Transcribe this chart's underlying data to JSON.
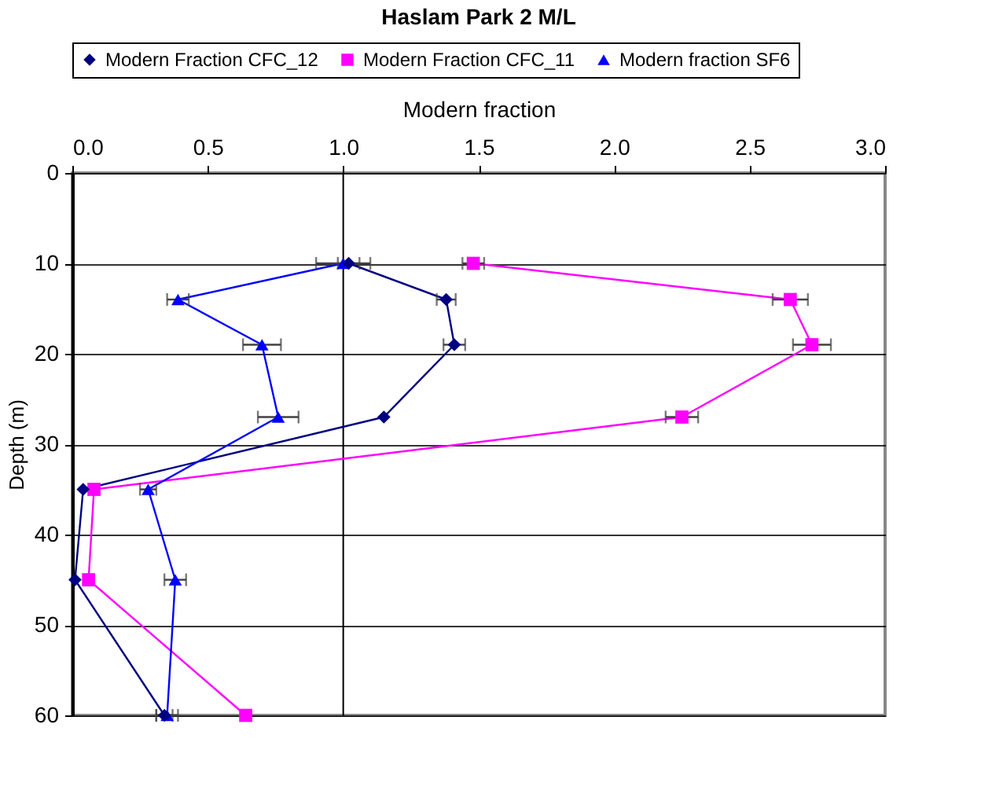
{
  "chart_data": {
    "type": "line",
    "title": "Haslam Park 2 M/L",
    "xlabel": "Modern fraction",
    "ylabel": "Depth (m)",
    "xlim": [
      0,
      3
    ],
    "xticks": [
      {
        "value": 0,
        "label": "0.0"
      },
      0.5,
      {
        "value": 1,
        "label": "1.0"
      },
      1.5,
      {
        "value": 2,
        "label": "2.0"
      },
      2.5,
      {
        "value": 3,
        "label": "3.0"
      }
    ],
    "ylim": [
      60,
      0
    ],
    "yticks": [
      0,
      10,
      20,
      30,
      40,
      50,
      60
    ],
    "grid": "y",
    "legend": "top",
    "ref_lines": [
      {
        "axis": "x",
        "value": 1,
        "color": "#000000"
      }
    ],
    "series": [
      {
        "name": "Modern Fraction CFC_12",
        "color": "#000080",
        "marker": "diamond",
        "x": [
          1.02,
          1.38,
          1.41,
          1.15,
          0.04,
          0.01,
          0.34
        ],
        "values": [
          10,
          14,
          19,
          27,
          35,
          45,
          60
        ],
        "xerrors": [
          0.04,
          0.035,
          0.04,
          null,
          null,
          null,
          0.03
        ]
      },
      {
        "name": "Modern Fraction CFC_11",
        "color": "#ff00ff",
        "marker": "square",
        "x": [
          1.48,
          2.65,
          2.73,
          2.25,
          0.08,
          0.06,
          0.64
        ],
        "values": [
          10,
          14,
          19,
          27,
          35,
          45,
          60
        ],
        "xerrors": [
          0.04,
          0.065,
          0.07,
          0.06,
          null,
          null,
          null
        ]
      },
      {
        "name": "Modern fraction SF6",
        "color": "#0000ff",
        "marker": "triangle",
        "x": [
          1.0,
          0.39,
          0.7,
          0.76,
          0.28,
          0.38,
          0.35
        ],
        "values": [
          10,
          14,
          19,
          27,
          35,
          45,
          60
        ],
        "xerrors": [
          0.1,
          0.04,
          0.07,
          0.075,
          0.03,
          0.04,
          0.04
        ]
      }
    ]
  }
}
